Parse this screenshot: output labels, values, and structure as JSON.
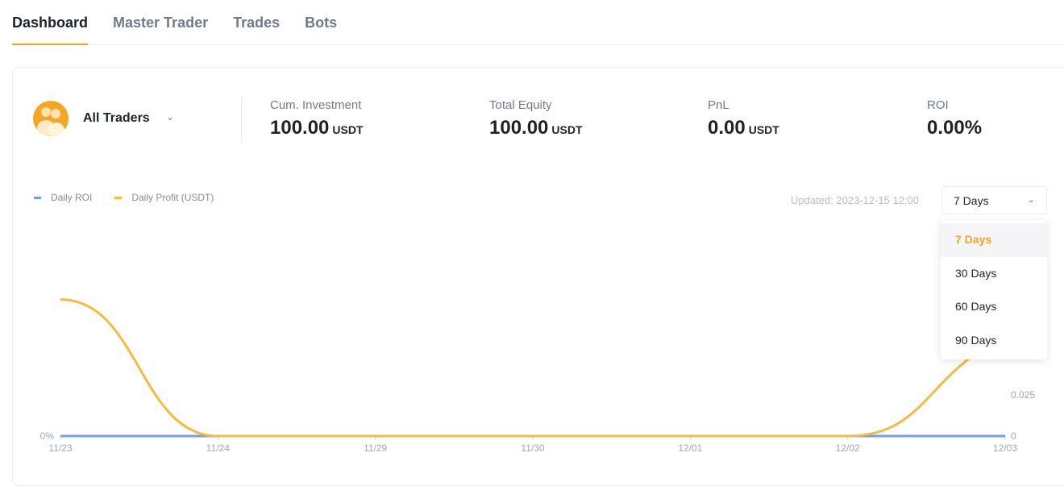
{
  "tabs": [
    {
      "label": "Dashboard",
      "active": true
    },
    {
      "label": "Master Trader"
    },
    {
      "label": "Trades"
    },
    {
      "label": "Bots"
    }
  ],
  "trader": {
    "name": "All Traders",
    "icon": "users-icon"
  },
  "stats": [
    {
      "label": "Cum. Investment",
      "value": "100.00",
      "unit": "USDT"
    },
    {
      "label": "Total Equity",
      "value": "100.00",
      "unit": "USDT"
    },
    {
      "label": "PnL",
      "value": "0.00",
      "unit": "USDT"
    },
    {
      "label": "ROI",
      "value": "0.00%",
      "unit": ""
    }
  ],
  "updated": "Updated: 2023-12-15 12:00",
  "range": {
    "selected": "7 Days",
    "options": [
      "7 Days",
      "30 Days",
      "60 Days",
      "90 Days"
    ]
  },
  "colors": {
    "accent": "#f0a818",
    "roi": "#6f9ef8",
    "profit": "#f5bb3c"
  },
  "chart_data": {
    "type": "line",
    "categories": [
      "11/23",
      "11/24",
      "11/29",
      "11/30",
      "12/01",
      "12/02",
      "12/03"
    ],
    "series": [
      {
        "name": "Daily ROI",
        "axis": "left",
        "values": [
          0,
          0,
          0,
          0,
          0,
          0,
          0
        ]
      },
      {
        "name": "Daily Profit (USDT)",
        "axis": "right",
        "values": [
          0.083,
          0,
          0,
          0,
          0,
          0,
          0.06
        ]
      }
    ],
    "left_axis": {
      "ticks": [
        "0%"
      ]
    },
    "right_axis": {
      "ticks": [
        "0",
        "0.025"
      ],
      "tick_values": [
        0,
        0.025
      ]
    },
    "legend": "top-left",
    "grid": false
  }
}
